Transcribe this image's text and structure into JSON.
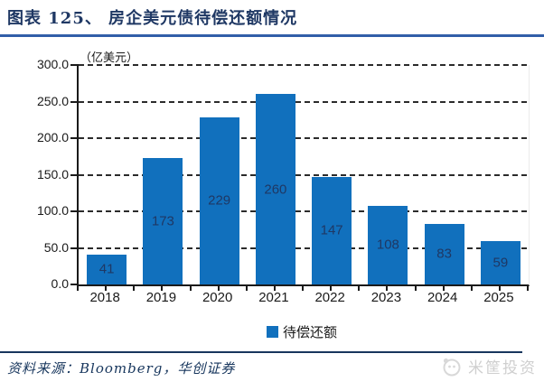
{
  "title": "图表 125、 房企美元债待偿还额情况",
  "chart_data": {
    "type": "bar",
    "title": "房企美元债待偿还额情况",
    "categories": [
      "2018",
      "2019",
      "2020",
      "2021",
      "2022",
      "2023",
      "2024",
      "2025"
    ],
    "values": [
      41,
      173,
      229,
      260,
      147,
      108,
      83,
      59
    ],
    "unit_label": "（亿美元）",
    "xlabel": "",
    "ylabel": "（亿美元）",
    "y_ticks": [
      "300.0",
      "250.0",
      "200.0",
      "150.0",
      "100.0",
      "50.0",
      "0.0"
    ],
    "ylim": [
      0,
      300
    ],
    "grid": "dashed-horizontal",
    "legend_label": "待偿还额",
    "legend_position": "bottom-center",
    "bar_color": "#1170BD",
    "bar_label_color": "#1F3864"
  },
  "footer": {
    "source_label": "资料来源：Bloomberg，华创证券",
    "watermark": "米筐投资"
  },
  "colors": {
    "title_text": "#1F3864",
    "title_rule": "#315EA8",
    "footer_rule": "#17365D",
    "axis": "#1a1a1a",
    "watermark": "#CFCFCF"
  }
}
